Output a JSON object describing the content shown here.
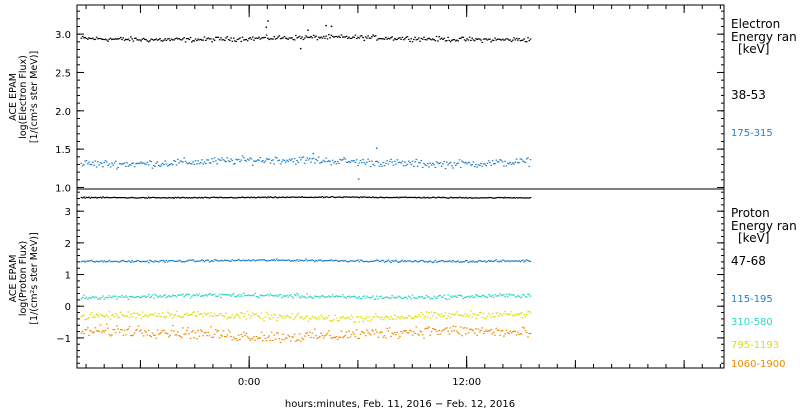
{
  "chart_data": [
    {
      "type": "scatter",
      "panel": "electron",
      "ylabel_lines": [
        "ACE EPAM",
        "log(Electron Flux)",
        "[1/(cm²s ster MeV)]"
      ],
      "yticks": [
        "1.0",
        "1.5",
        "2.0",
        "2.5",
        "3.0"
      ],
      "ylim": [
        0.98,
        3.38
      ],
      "legend_title_lines": [
        "Electron",
        "Energy ran",
        "[keV]"
      ],
      "series": [
        {
          "name": "38-53",
          "color": "#000000",
          "mean": 2.95,
          "spread": 0.045,
          "x_end": 15.5,
          "outliers": [
            [
              1.0,
              3.18
            ],
            [
              0.9,
              3.1
            ],
            [
              3.2,
              3.06
            ],
            [
              4.2,
              3.12
            ],
            [
              4.5,
              3.11
            ],
            [
              2.8,
              2.82
            ]
          ]
        },
        {
          "name": "175-315",
          "color": "#1f7fc8",
          "mean": 1.34,
          "spread": 0.075,
          "x_end": 15.5,
          "outliers": [
            [
              7.0,
              1.52
            ],
            [
              6.0,
              1.12
            ],
            [
              3.5,
              1.45
            ]
          ]
        }
      ]
    },
    {
      "type": "scatter",
      "panel": "proton",
      "ylabel_lines": [
        "ACE EPAM",
        "log(Proton Flux)",
        "[1/(cm²s ster MeV)]"
      ],
      "yticks": [
        "−1",
        "0",
        "1",
        "2",
        "3"
      ],
      "ylim": [
        -1.95,
        3.7
      ],
      "legend_title_lines": [
        "Proton",
        "Energy ran",
        "[keV]"
      ],
      "series": [
        {
          "name": "47-68",
          "color": "#000000",
          "mean": 3.45,
          "spread": 0.025,
          "x_end": 15.5
        },
        {
          "name": "115-195",
          "color": "#1f7fc8",
          "mean": 1.45,
          "spread": 0.05,
          "x_end": 15.5
        },
        {
          "name": "310-580",
          "color": "#2dd4c4",
          "mean": 0.33,
          "spread": 0.1,
          "x_end": 15.5
        },
        {
          "name": "795-1193",
          "color": "#dede00",
          "mean": -0.3,
          "spread": 0.17,
          "x_end": 15.5
        },
        {
          "name": "1060-1900",
          "color": "#ee8a00",
          "mean": -0.85,
          "spread": 0.27,
          "x_end": 15.5
        }
      ]
    }
  ],
  "x_axis": {
    "xlim": [
      -9.5,
      26.2
    ],
    "ticks": [
      {
        "value": 0,
        "label": "0:00"
      },
      {
        "value": 12,
        "label": "12:00"
      }
    ],
    "minor_step": 1,
    "label": "hours:minutes, Feb. 11, 2016 − Feb. 12, 2016"
  }
}
